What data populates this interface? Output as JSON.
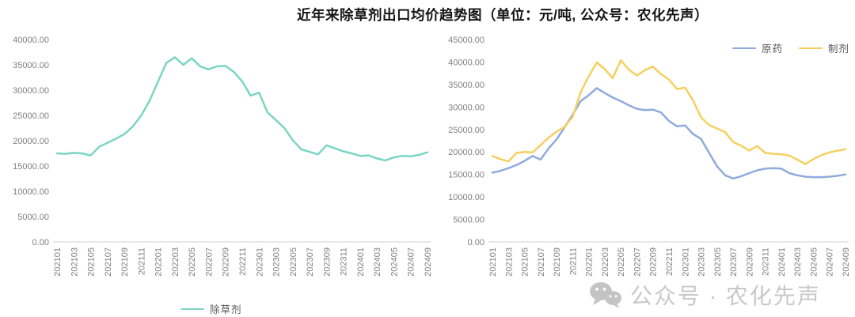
{
  "title": "近年来除草剂出口均价趋势图（单位：元/吨, 公众号：农化先声）",
  "watermark": {
    "text": "公众号 · 农化先声",
    "icon": "wechat-icon"
  },
  "colors": {
    "herbicide": "#7bd5c4",
    "technical": "#8faadc",
    "formulation": "#f6d05e",
    "axis_line": "#d9d9d9",
    "axis_text": "#808080",
    "watermark": "#c4c4c4"
  },
  "chart_data": [
    {
      "type": "line",
      "title": "",
      "ylim": [
        0,
        40000
      ],
      "grid": false,
      "legend_position": "bottom-center",
      "y_tick_values": [
        40000,
        35000,
        30000,
        25000,
        20000,
        15000,
        10000,
        5000,
        0
      ],
      "y_tick_labels": [
        "40000.00",
        "35000.00",
        "30000.00",
        "25000.00",
        "20000.00",
        "15000.00",
        "10000.00",
        "5000.00",
        "0.00"
      ],
      "categories": [
        "202101",
        "202102",
        "202103",
        "202104",
        "202105",
        "202106",
        "202107",
        "202108",
        "202109",
        "202110",
        "202111",
        "202112",
        "202201",
        "202202",
        "202203",
        "202204",
        "202205",
        "202206",
        "202207",
        "202208",
        "202209",
        "202210",
        "202211",
        "202212",
        "202301",
        "202302",
        "202303",
        "202304",
        "202305",
        "202306",
        "202307",
        "202308",
        "202309",
        "202310",
        "202311",
        "202312",
        "202401",
        "202402",
        "202403",
        "202404",
        "202405",
        "202406",
        "202407",
        "202408",
        "202409"
      ],
      "x_tick_labels": [
        "202101",
        "202103",
        "202105",
        "202107",
        "202109",
        "202111",
        "202201",
        "202203",
        "202205",
        "202207",
        "202209",
        "202211",
        "202301",
        "202303",
        "202305",
        "202307",
        "202309",
        "202311",
        "202401",
        "202403",
        "202405",
        "202407",
        "202409"
      ],
      "series": [
        {
          "name": "除草剂",
          "color": "#7bd5c4",
          "values": [
            17500,
            17400,
            17600,
            17500,
            17100,
            18800,
            19600,
            20400,
            21300,
            22800,
            25000,
            27900,
            31700,
            35400,
            36500,
            35000,
            36300,
            34700,
            34100,
            34700,
            34800,
            33600,
            31700,
            28900,
            29500,
            25600,
            24100,
            22500,
            20100,
            18300,
            17800,
            17300,
            19100,
            18500,
            17900,
            17500,
            17000,
            17100,
            16500,
            16100,
            16700,
            17000,
            16900,
            17200,
            17700
          ]
        }
      ]
    },
    {
      "type": "line",
      "title": "",
      "ylim": [
        0,
        45000
      ],
      "grid": false,
      "legend_position": "top-right",
      "y_tick_values": [
        45000,
        40000,
        35000,
        30000,
        25000,
        20000,
        15000,
        10000,
        5000,
        0
      ],
      "y_tick_labels": [
        "45000.00",
        "40000.00",
        "35000.00",
        "30000.00",
        "25000.00",
        "20000.00",
        "15000.00",
        "10000.00",
        "5000.00",
        "0.00"
      ],
      "categories": [
        "202101",
        "202102",
        "202103",
        "202104",
        "202105",
        "202106",
        "202107",
        "202108",
        "202109",
        "202110",
        "202111",
        "202112",
        "202201",
        "202202",
        "202203",
        "202204",
        "202205",
        "202206",
        "202207",
        "202208",
        "202209",
        "202210",
        "202211",
        "202212",
        "202301",
        "202302",
        "202303",
        "202304",
        "202305",
        "202306",
        "202307",
        "202308",
        "202309",
        "202310",
        "202311",
        "202312",
        "202401",
        "202402",
        "202403",
        "202404",
        "202405",
        "202406",
        "202407",
        "202408",
        "202409"
      ],
      "x_tick_labels": [
        "202101",
        "202103",
        "202105",
        "202107",
        "202109",
        "202111",
        "202201",
        "202203",
        "202205",
        "202207",
        "202209",
        "202211",
        "202301",
        "202303",
        "202305",
        "202307",
        "202309",
        "202311",
        "202401",
        "202403",
        "202405",
        "202407",
        "202409"
      ],
      "series": [
        {
          "name": "原药",
          "color": "#8faadc",
          "values": [
            15400,
            15800,
            16400,
            17100,
            18000,
            19100,
            18300,
            20800,
            22800,
            25500,
            28300,
            31300,
            32600,
            34200,
            33100,
            32100,
            31300,
            30400,
            29600,
            29300,
            29400,
            28800,
            26900,
            25700,
            25900,
            24000,
            22900,
            19800,
            16800,
            14800,
            14100,
            14600,
            15300,
            15900,
            16300,
            16400,
            16300,
            15300,
            14800,
            14500,
            14400,
            14400,
            14500,
            14700,
            15000
          ]
        },
        {
          "name": "制剂",
          "color": "#f6d05e",
          "values": [
            19100,
            18400,
            17900,
            19800,
            20000,
            19900,
            21500,
            23200,
            24500,
            25600,
            27800,
            33300,
            36800,
            39900,
            38400,
            36400,
            40400,
            38300,
            37000,
            38200,
            39000,
            37300,
            36100,
            34000,
            34300,
            31500,
            27700,
            26000,
            25200,
            24400,
            22200,
            21400,
            20300,
            21300,
            19800,
            19600,
            19500,
            19200,
            18300,
            17300,
            18400,
            19300,
            19900,
            20300,
            20600
          ]
        }
      ]
    }
  ]
}
